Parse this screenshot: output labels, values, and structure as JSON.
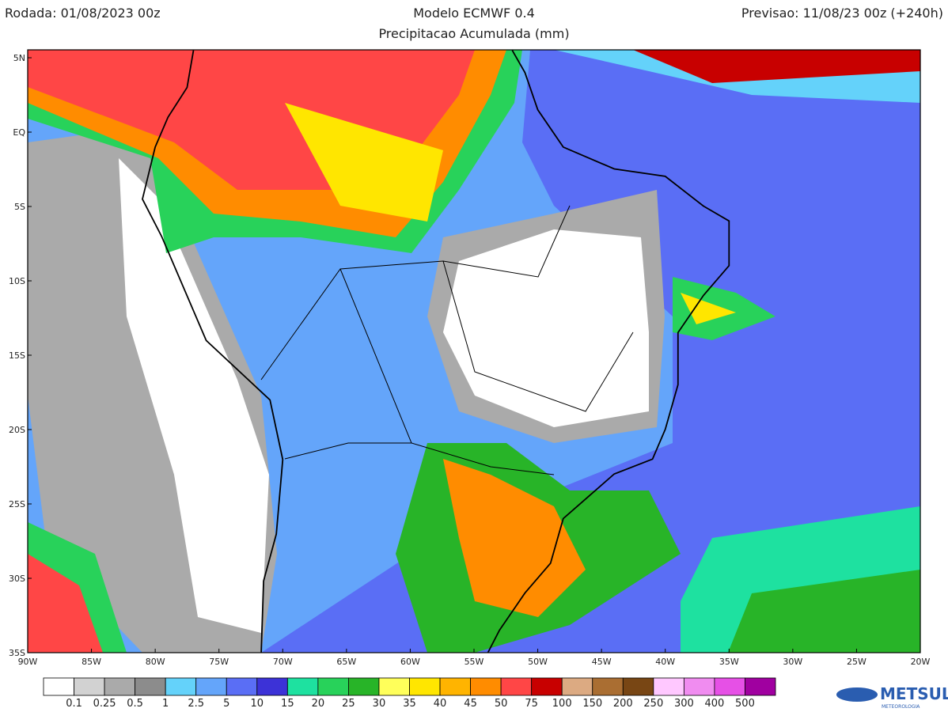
{
  "header": {
    "run": "Rodada: 01/08/2023 00z",
    "model": "Modelo ECMWF 0.4",
    "subtitle": "Precipitacao Acumulada (mm)",
    "forecast": "Previsao: 11/08/23 00z (+240h)"
  },
  "map": {
    "lat_labels": [
      "5N",
      "EQ",
      "5S",
      "10S",
      "15S",
      "20S",
      "25S",
      "30S",
      "35S"
    ],
    "lon_labels": [
      "90W",
      "85W",
      "80W",
      "75W",
      "70W",
      "65W",
      "60W",
      "55W",
      "50W",
      "45W",
      "40W",
      "35W",
      "30W",
      "25W",
      "20W"
    ]
  },
  "colorbar": {
    "colors": [
      "#ffffff",
      "#d2d2d2",
      "#aaaaaa",
      "#8c8c8c",
      "#64d2fa",
      "#64a5fa",
      "#5a6ef5",
      "#3c32d7",
      "#1ee1a0",
      "#28d25a",
      "#28b428",
      "#ffff5a",
      "#ffe600",
      "#ffb400",
      "#ff8c00",
      "#ff4646",
      "#c80000",
      "#dcaa82",
      "#aa6e32",
      "#784614",
      "#ffc8ff",
      "#f08cf0",
      "#e650e6",
      "#a000a0"
    ],
    "labels": [
      0.1,
      0.25,
      0.5,
      1,
      2.5,
      5,
      10,
      15,
      20,
      25,
      30,
      35,
      40,
      45,
      50,
      75,
      100,
      150,
      200,
      250,
      300,
      400,
      500
    ]
  },
  "logo": {
    "name": "METSUL",
    "tagline": "METEOROLOGIA"
  }
}
